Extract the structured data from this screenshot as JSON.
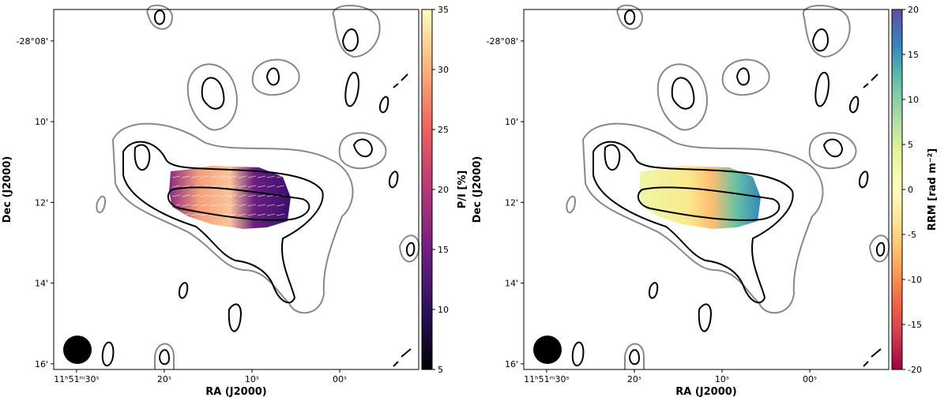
{
  "chart_data": [
    {
      "type": "map",
      "xlabel": "RA (J2000)",
      "ylabel": "Dec (J2000)",
      "xlim": [
        32.6,
        -9
      ],
      "xticks": [
        {
          "value": 30,
          "label": "11ʰ51ᵐ30ˢ"
        },
        {
          "value": 20,
          "label": "20ˢ"
        },
        {
          "value": 10,
          "label": "10ˢ"
        },
        {
          "value": 0,
          "label": "00ˢ"
        }
      ],
      "ylim": [
        16.14,
        7.22
      ],
      "yticks": [
        {
          "value": 8,
          "label": "-28°08'"
        },
        {
          "value": 10,
          "label": "10'"
        },
        {
          "value": 12,
          "label": "12'"
        },
        {
          "value": 14,
          "label": "14'"
        },
        {
          "value": 16,
          "label": "16'"
        }
      ],
      "colorbar": {
        "label": "P/I [%]",
        "lim": [
          5,
          35
        ],
        "ticks": [
          5,
          10,
          15,
          20,
          25,
          30,
          35
        ],
        "colormap": [
          "#000004",
          "#2c115f",
          "#721f81",
          "#b73779",
          "#f1605d",
          "#feb078",
          "#fcfdbf"
        ]
      }
    },
    {
      "type": "map",
      "xlabel": "RA (J2000)",
      "ylabel": "Dec (J2000)",
      "xlim": [
        32.6,
        -9
      ],
      "xticks": [
        {
          "value": 30,
          "label": "11ʰ51ᵐ30ˢ"
        },
        {
          "value": 20,
          "label": "20ˢ"
        },
        {
          "value": 10,
          "label": "10ˢ"
        },
        {
          "value": 0,
          "label": "00ˢ"
        }
      ],
      "ylim": [
        16.14,
        7.22
      ],
      "yticks": [
        {
          "value": 8,
          "label": "-28°08'"
        },
        {
          "value": 10,
          "label": "10'"
        },
        {
          "value": 12,
          "label": "12'"
        },
        {
          "value": 14,
          "label": "14'"
        },
        {
          "value": 16,
          "label": "16'"
        }
      ],
      "colorbar": {
        "label": "RRM [rad m⁻²]",
        "lim": [
          -20,
          20
        ],
        "ticks": [
          -20,
          -15,
          -10,
          -5,
          0,
          5,
          10,
          15,
          20
        ],
        "colormap": [
          "#9e0142",
          "#d53e4f",
          "#f46d43",
          "#fdae61",
          "#fee08b",
          "#ffffbf",
          "#e6f598",
          "#abdda4",
          "#66c2a5",
          "#3288bd",
          "#5e4fa2"
        ]
      }
    }
  ]
}
